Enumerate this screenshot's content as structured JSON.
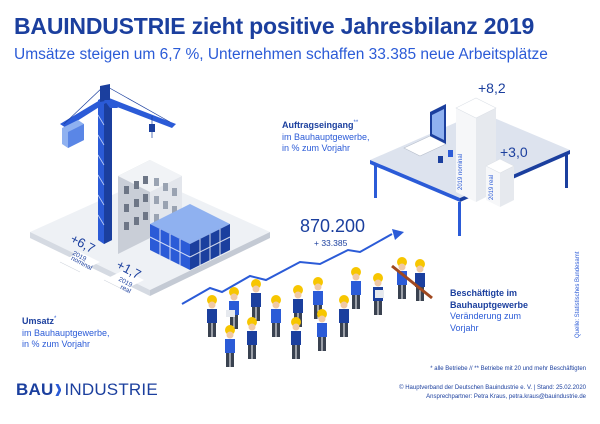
{
  "header": {
    "title": "BAUINDUSTRIE zieht positive Jahresbilanz 2019",
    "subtitle": "Umsätze steigen um 6,7 %, Unternehmen schaffen 33.385 neue Arbeitsplätze"
  },
  "umsatz": {
    "label_bold": "Umsatz",
    "label_mark": "*",
    "line1": "im Bauhauptgewerbe,",
    "line2": "in % zum Vorjahr",
    "nominal_value": "+6,7",
    "nominal_caption1": "2019",
    "nominal_caption2": "nominal",
    "real_value": "+1,7",
    "real_caption1": "2019",
    "real_caption2": "real"
  },
  "auftrag": {
    "label_bold": "Auftragseingang",
    "label_mark": "**",
    "line1": "im Bauhauptgewerbe,",
    "line2": "in % zum Vorjahr",
    "nominal_value": "+8,2",
    "nominal_caption": "2019 nominal",
    "real_value": "+3,0",
    "real_caption": "2019 real"
  },
  "beschaeftigte": {
    "total": "870.200",
    "delta": "+ 33.385",
    "label_bold1": "Beschäftigte im",
    "label_bold2": "Bauhauptgewerbe",
    "line1": "Veränderung zum",
    "line2": "Vorjahr"
  },
  "source": "Quelle: Statistisches Bundesamt",
  "footnotes": {
    "notes": "* alle Betriebe // ** Betriebe mit 20 und mehr Beschäftigten",
    "copyright": "© Hauptverband der Deutschen Bauindustrie e. V. | Stand: 25.02.2020",
    "contact": "Ansprechpartner: Petra Kraus, petra.kraus@bauindustrie.de"
  },
  "logo": {
    "left": "BAU",
    "right": "INDUSTRIE"
  },
  "colors": {
    "dark_blue": "#1b3f9e",
    "blue": "#2b5bd7",
    "light_blue": "#8fb1f0",
    "grey": "#d9dde3",
    "yellow": "#f7c600"
  },
  "icons": [
    "crane-icon",
    "building-icon",
    "desk-icon",
    "laptop-icon",
    "workers-icon",
    "trend-arrow-icon",
    "logo-chevron-icon"
  ]
}
